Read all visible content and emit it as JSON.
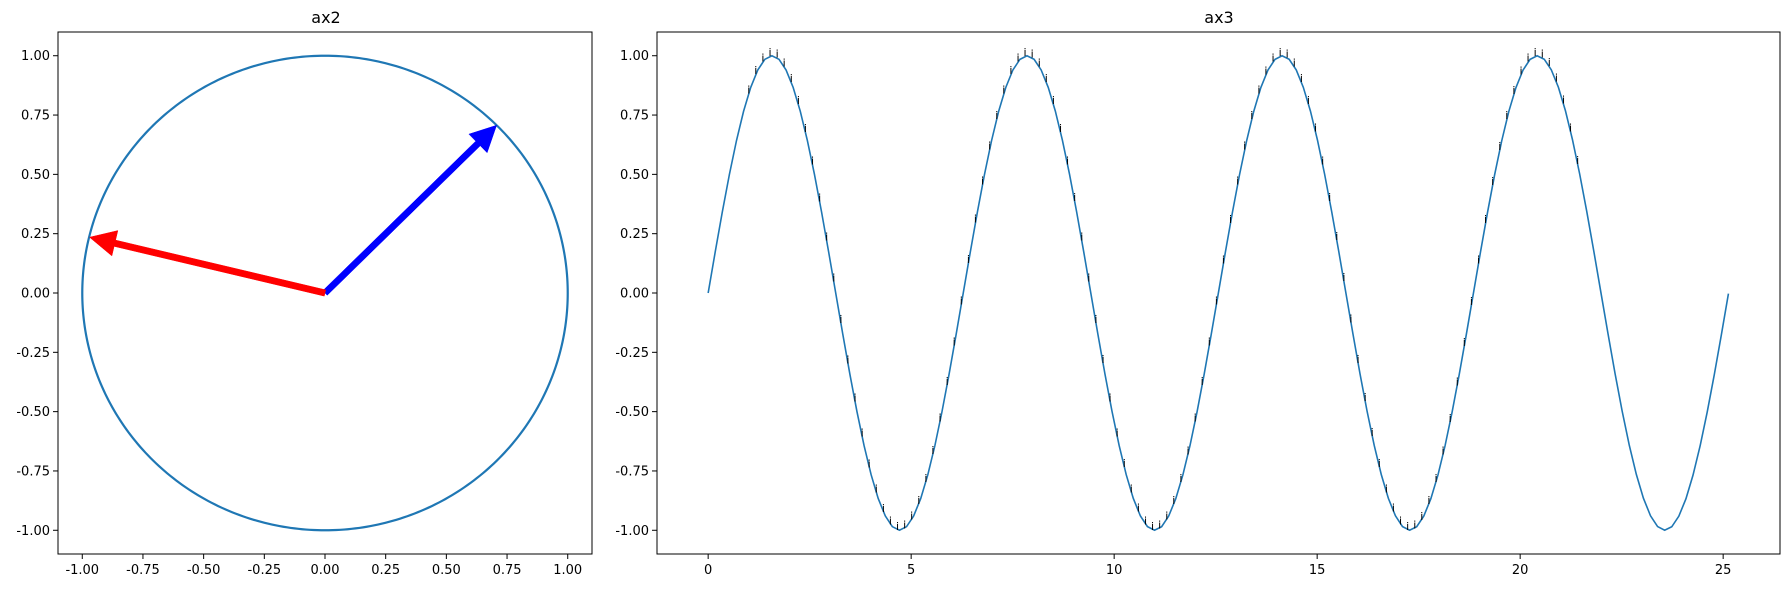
{
  "chart_data": [
    {
      "title": "ax2",
      "type": "line",
      "xlim": [
        -1.1,
        1.1
      ],
      "ylim": [
        -1.1,
        1.1
      ],
      "xticks": [
        "-1.00",
        "-0.75",
        "-0.50",
        "-0.25",
        "0.00",
        "0.25",
        "0.50",
        "0.75",
        "1.00"
      ],
      "yticks": [
        "-1.00",
        "-0.75",
        "-0.50",
        "-0.25",
        "0.00",
        "0.25",
        "0.50",
        "0.75",
        "1.00"
      ],
      "grid": false,
      "series": [
        {
          "kind": "unit-circle",
          "radius": 1.0,
          "color": "#1f77b4"
        }
      ],
      "arrows": [
        {
          "x0": 0,
          "y0": 0,
          "x1": 0.707,
          "y1": 0.707,
          "color": "#0000ff"
        },
        {
          "x0": 0,
          "y0": 0,
          "x1": -0.97,
          "y1": 0.235,
          "color": "#ff0000"
        }
      ]
    },
    {
      "title": "ax3",
      "type": "line",
      "xlim": [
        -1.26,
        26.4
      ],
      "ylim": [
        -1.1,
        1.1
      ],
      "xticks": [
        "0",
        "5",
        "10",
        "15",
        "20",
        "25"
      ],
      "yticks": [
        "-1.00",
        "-0.75",
        "-0.50",
        "-0.25",
        "0.00",
        "0.25",
        "0.50",
        "0.75",
        "1.00"
      ],
      "grid": false,
      "series": [
        {
          "kind": "sine",
          "x_range": [
            0,
            25.13
          ],
          "color": "#1f77b4"
        }
      ],
      "point_label": "i",
      "point_labels_x_range": [
        1.0,
        21.5
      ],
      "point_labels_step": 0.1745
    }
  ]
}
